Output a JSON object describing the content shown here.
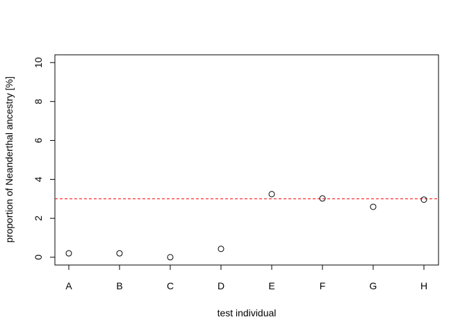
{
  "chart_data": {
    "type": "scatter",
    "title": "",
    "xlabel": "test individual",
    "ylabel": "proportion of Neanderthal ancestry [%]",
    "categories": [
      "A",
      "B",
      "C",
      "D",
      "E",
      "F",
      "G",
      "H"
    ],
    "values": [
      0.2,
      0.2,
      0.0,
      0.43,
      3.24,
      3.02,
      2.59,
      2.96
    ],
    "ylim": [
      -0.4,
      10.4
    ],
    "yticks": [
      0,
      2,
      4,
      6,
      8,
      10
    ],
    "yticklabels": [
      "0",
      "2",
      "4",
      "6",
      "8",
      "10"
    ],
    "reference_line": {
      "y": 3.0,
      "style": "dashed",
      "color": "#ff0000"
    },
    "marker": "open-circle",
    "grid": false,
    "legend": null
  }
}
